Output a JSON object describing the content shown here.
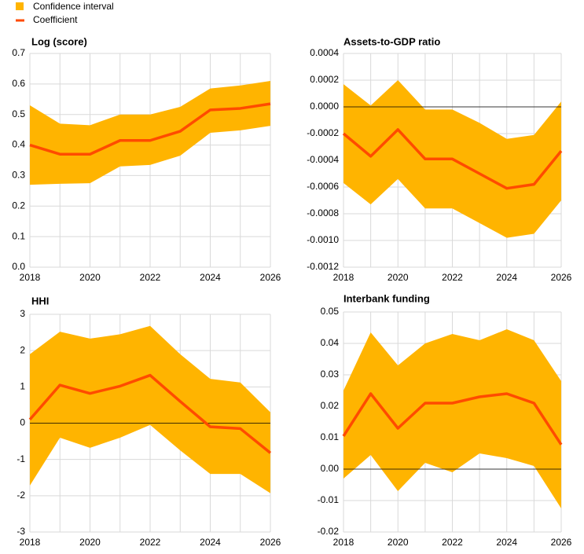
{
  "legend": [
    {
      "name": "Confidence interval",
      "color": "#ffb400"
    },
    {
      "name": "Coefficient",
      "color": "#ff4b00"
    }
  ],
  "chart_data": [
    {
      "type": "band-line",
      "title": "Log (score)",
      "x": [
        2018,
        2019,
        2020,
        2021,
        2022,
        2023,
        2024,
        2025,
        2026
      ],
      "values": [
        0.4,
        0.37,
        0.37,
        0.415,
        0.415,
        0.445,
        0.515,
        0.52,
        0.535
      ],
      "upper": [
        0.53,
        0.47,
        0.465,
        0.5,
        0.5,
        0.525,
        0.585,
        0.595,
        0.61
      ],
      "lower": [
        0.27,
        0.273,
        0.275,
        0.33,
        0.335,
        0.365,
        0.44,
        0.448,
        0.463
      ],
      "xlim": [
        2018,
        2026
      ],
      "xticks": [
        2018,
        2020,
        2022,
        2024,
        2026
      ],
      "ylim": [
        0,
        0.7
      ],
      "yticks": [
        {
          "value": 0,
          "label": "0.0"
        },
        0.1,
        0.2,
        0.3,
        0.4,
        0.5,
        0.6,
        0.7
      ],
      "grid": true
    },
    {
      "type": "band-line",
      "title": "Assets-to-GDP  ratio",
      "x": [
        2018,
        2019,
        2020,
        2021,
        2022,
        2023,
        2024,
        2025,
        2026
      ],
      "values": [
        -0.0002,
        -0.00037,
        -0.00017,
        -0.00039,
        -0.00039,
        -0.0005,
        -0.00061,
        -0.00058,
        -0.00033
      ],
      "upper": [
        0.00017,
        1e-05,
        0.0002,
        -2e-05,
        -2e-05,
        -0.00012,
        -0.00024,
        -0.00021,
        4e-05
      ],
      "lower": [
        -0.00057,
        -0.00073,
        -0.00054,
        -0.00076,
        -0.00076,
        -0.00087,
        -0.00098,
        -0.00095,
        -0.0007
      ],
      "xlim": [
        2018,
        2026
      ],
      "xticks": [
        2018,
        2020,
        2022,
        2024,
        2026
      ],
      "ylim": [
        -0.0012,
        0.0004
      ],
      "yticks": [
        -0.0012,
        {
          "value": -0.001,
          "label": "-0.0010"
        },
        -0.0008,
        -0.0006,
        -0.0004,
        -0.0002,
        {
          "value": 0,
          "label": "0.0000"
        },
        0.0002,
        0.0004
      ],
      "grid": true
    },
    {
      "type": "band-line",
      "title": "HHI",
      "x": [
        2018,
        2019,
        2020,
        2021,
        2022,
        2023,
        2024,
        2025,
        2026
      ],
      "values": [
        0.1,
        1.05,
        0.82,
        1.02,
        1.32,
        0.6,
        -0.1,
        -0.15,
        -0.82
      ],
      "upper": [
        1.9,
        2.52,
        2.33,
        2.45,
        2.68,
        1.9,
        1.22,
        1.12,
        0.3
      ],
      "lower": [
        -1.72,
        -0.4,
        -0.68,
        -0.4,
        -0.05,
        -0.75,
        -1.4,
        -1.4,
        -1.93
      ],
      "xlim": [
        2018,
        2026
      ],
      "xticks": [
        2018,
        2020,
        2022,
        2024,
        2026
      ],
      "ylim": [
        -3,
        3
      ],
      "yticks": [
        -3,
        -2,
        -1,
        0,
        1,
        2,
        3
      ],
      "grid": true
    },
    {
      "type": "band-line",
      "title": "Interbank funding",
      "x": [
        2018,
        2019,
        2020,
        2021,
        2022,
        2023,
        2024,
        2025,
        2026
      ],
      "values": [
        0.0105,
        0.024,
        0.013,
        0.021,
        0.021,
        0.023,
        0.024,
        0.021,
        0.0078
      ],
      "upper": [
        0.025,
        0.0435,
        0.033,
        0.04,
        0.043,
        0.041,
        0.0445,
        0.041,
        0.028
      ],
      "lower": [
        -0.003,
        0.0045,
        -0.007,
        0.002,
        -0.001,
        0.005,
        0.0035,
        0.001,
        -0.0125
      ],
      "xlim": [
        2018,
        2026
      ],
      "xticks": [
        2018,
        2020,
        2022,
        2024,
        2026
      ],
      "ylim": [
        -0.02,
        0.05
      ],
      "yticks": [
        -0.02,
        -0.01,
        {
          "value": 0,
          "label": "0.00"
        },
        0.01,
        0.02,
        0.03,
        0.04,
        0.05
      ],
      "grid": true
    }
  ]
}
